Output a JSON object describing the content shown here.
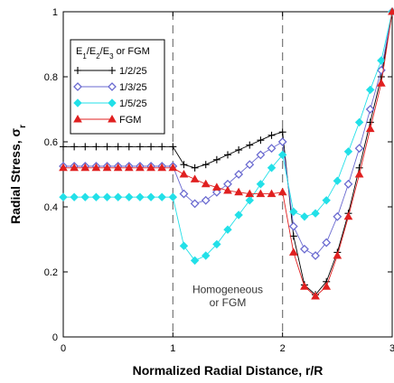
{
  "chart_data": {
    "type": "line",
    "title": "",
    "xlabel": "Normalized Radial Distance, r/R",
    "ylabel_main": "Radial Stress,  σ",
    "ylabel_sub": "r",
    "xlim": [
      0,
      3
    ],
    "ylim": [
      0,
      1
    ],
    "x_ticks": [
      0,
      1,
      2,
      3
    ],
    "x_tick_labels": [
      "0",
      "1",
      "2",
      "3"
    ],
    "y_ticks": [
      0,
      0.2,
      0.4,
      0.6,
      0.8,
      1
    ],
    "y_tick_labels": [
      "0",
      "0.2",
      "0.4",
      "0.6",
      "0.8",
      "1"
    ],
    "grid": false,
    "vertical_lines": [
      1,
      2
    ],
    "annotation": [
      "Homogeneous",
      "or FGM"
    ],
    "annotation_x": 1.5,
    "annotation_y": [
      0.135,
      0.095
    ],
    "legend_title_parts": [
      "E",
      "1",
      "/E",
      "2",
      "/E",
      "3",
      " or FGM"
    ],
    "legend_position": "top-left",
    "series": [
      {
        "name": "1/2/25",
        "color": "#000000",
        "marker": "plus",
        "x": [
          0,
          0.1,
          0.2,
          0.3,
          0.4,
          0.5,
          0.6,
          0.7,
          0.8,
          0.9,
          1.0,
          1.1,
          1.2,
          1.3,
          1.4,
          1.5,
          1.6,
          1.7,
          1.8,
          1.9,
          2.0,
          2.1,
          2.2,
          2.3,
          2.4,
          2.5,
          2.6,
          2.7,
          2.8,
          2.9,
          3.0
        ],
        "y": [
          0.585,
          0.585,
          0.585,
          0.585,
          0.585,
          0.585,
          0.585,
          0.585,
          0.585,
          0.585,
          0.585,
          0.53,
          0.52,
          0.53,
          0.545,
          0.56,
          0.575,
          0.59,
          0.605,
          0.62,
          0.63,
          0.31,
          0.16,
          0.13,
          0.17,
          0.26,
          0.38,
          0.52,
          0.66,
          0.8,
          1.0
        ]
      },
      {
        "name": "1/3/25",
        "color": "#6a6ad0",
        "marker": "diamond",
        "x": [
          0,
          0.1,
          0.2,
          0.3,
          0.4,
          0.5,
          0.6,
          0.7,
          0.8,
          0.9,
          1.0,
          1.1,
          1.2,
          1.3,
          1.4,
          1.5,
          1.6,
          1.7,
          1.8,
          1.9,
          2.0,
          2.1,
          2.2,
          2.3,
          2.4,
          2.5,
          2.6,
          2.7,
          2.8,
          2.9,
          3.0
        ],
        "y": [
          0.525,
          0.525,
          0.525,
          0.525,
          0.525,
          0.525,
          0.525,
          0.525,
          0.525,
          0.525,
          0.525,
          0.44,
          0.41,
          0.42,
          0.445,
          0.47,
          0.5,
          0.53,
          0.56,
          0.58,
          0.6,
          0.34,
          0.27,
          0.25,
          0.29,
          0.37,
          0.47,
          0.58,
          0.7,
          0.82,
          1.0
        ]
      },
      {
        "name": "1/5/25",
        "color": "#22e0e8",
        "marker": "filled-diamond",
        "x": [
          0,
          0.1,
          0.2,
          0.3,
          0.4,
          0.5,
          0.6,
          0.7,
          0.8,
          0.9,
          1.0,
          1.1,
          1.2,
          1.3,
          1.4,
          1.5,
          1.6,
          1.7,
          1.8,
          1.9,
          2.0,
          2.1,
          2.2,
          2.3,
          2.4,
          2.5,
          2.6,
          2.7,
          2.8,
          2.9,
          3.0
        ],
        "y": [
          0.43,
          0.43,
          0.43,
          0.43,
          0.43,
          0.43,
          0.43,
          0.43,
          0.43,
          0.43,
          0.43,
          0.28,
          0.235,
          0.25,
          0.285,
          0.33,
          0.375,
          0.42,
          0.47,
          0.52,
          0.56,
          0.385,
          0.37,
          0.38,
          0.42,
          0.48,
          0.57,
          0.66,
          0.76,
          0.85,
          1.0
        ]
      },
      {
        "name": "FGM",
        "color": "#e02020",
        "marker": "triangle",
        "x": [
          0,
          0.1,
          0.2,
          0.3,
          0.4,
          0.5,
          0.6,
          0.7,
          0.8,
          0.9,
          1.0,
          1.1,
          1.2,
          1.3,
          1.4,
          1.5,
          1.6,
          1.7,
          1.8,
          1.9,
          2.0,
          2.1,
          2.2,
          2.3,
          2.4,
          2.5,
          2.6,
          2.7,
          2.8,
          2.9,
          3.0
        ],
        "y": [
          0.52,
          0.52,
          0.52,
          0.52,
          0.52,
          0.52,
          0.52,
          0.52,
          0.52,
          0.52,
          0.52,
          0.5,
          0.485,
          0.47,
          0.46,
          0.45,
          0.445,
          0.44,
          0.44,
          0.44,
          0.445,
          0.26,
          0.155,
          0.125,
          0.155,
          0.25,
          0.37,
          0.5,
          0.64,
          0.78,
          1.0
        ]
      }
    ]
  }
}
